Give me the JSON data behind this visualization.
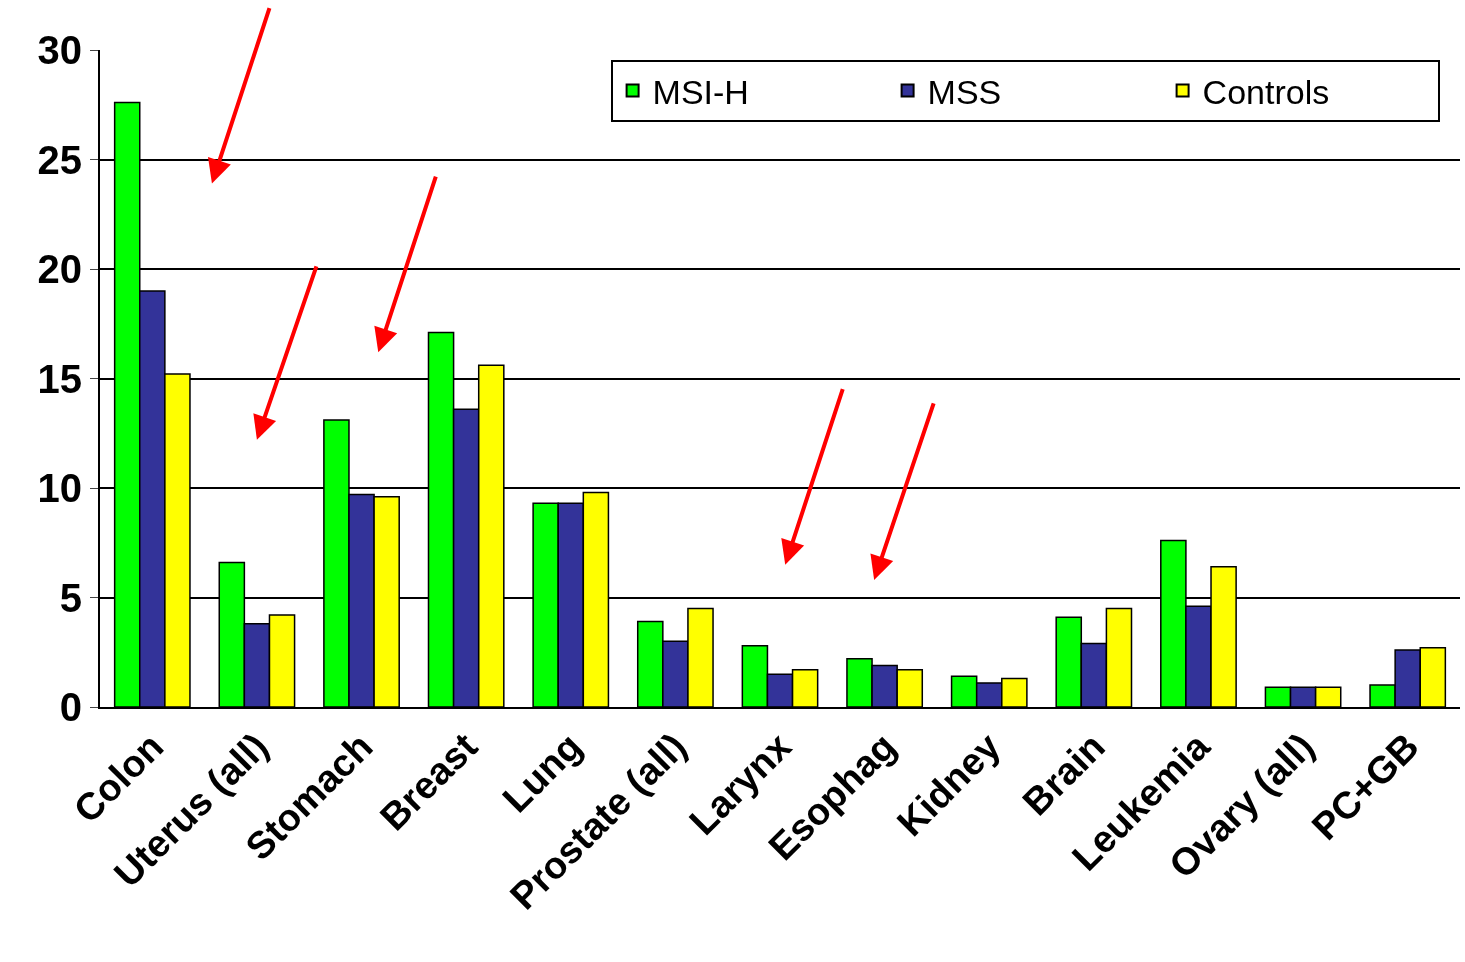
{
  "chart_data": {
    "type": "bar",
    "categories": [
      "Colon",
      "Uterus (all)",
      "Stomach",
      "Breast",
      "Lung",
      "Prostate (all)",
      "Larynx",
      "Esophag",
      "Kidney",
      "Brain",
      "Leukemia",
      "Ovary (all)",
      "PC+GB"
    ],
    "series": [
      {
        "name": "MSI-H",
        "color": "#00ff00",
        "values": [
          27.6,
          6.6,
          13.1,
          17.1,
          9.3,
          3.9,
          2.8,
          2.2,
          1.4,
          4.1,
          7.6,
          0.9,
          1.0
        ]
      },
      {
        "name": "MSS",
        "color": "#333399",
        "values": [
          19.0,
          3.8,
          9.7,
          13.6,
          9.3,
          3.0,
          1.5,
          1.9,
          1.1,
          2.9,
          4.6,
          0.9,
          2.6
        ]
      },
      {
        "name": "Controls",
        "color": "#ffff00",
        "values": [
          15.2,
          4.2,
          9.6,
          15.6,
          9.8,
          4.5,
          1.7,
          1.7,
          1.3,
          4.5,
          6.4,
          0.9,
          2.7
        ]
      }
    ],
    "ylim": [
      0,
      30
    ],
    "yticks": [
      0,
      5,
      10,
      15,
      20,
      25,
      30
    ],
    "grid": "y",
    "legend": "top right"
  }
}
